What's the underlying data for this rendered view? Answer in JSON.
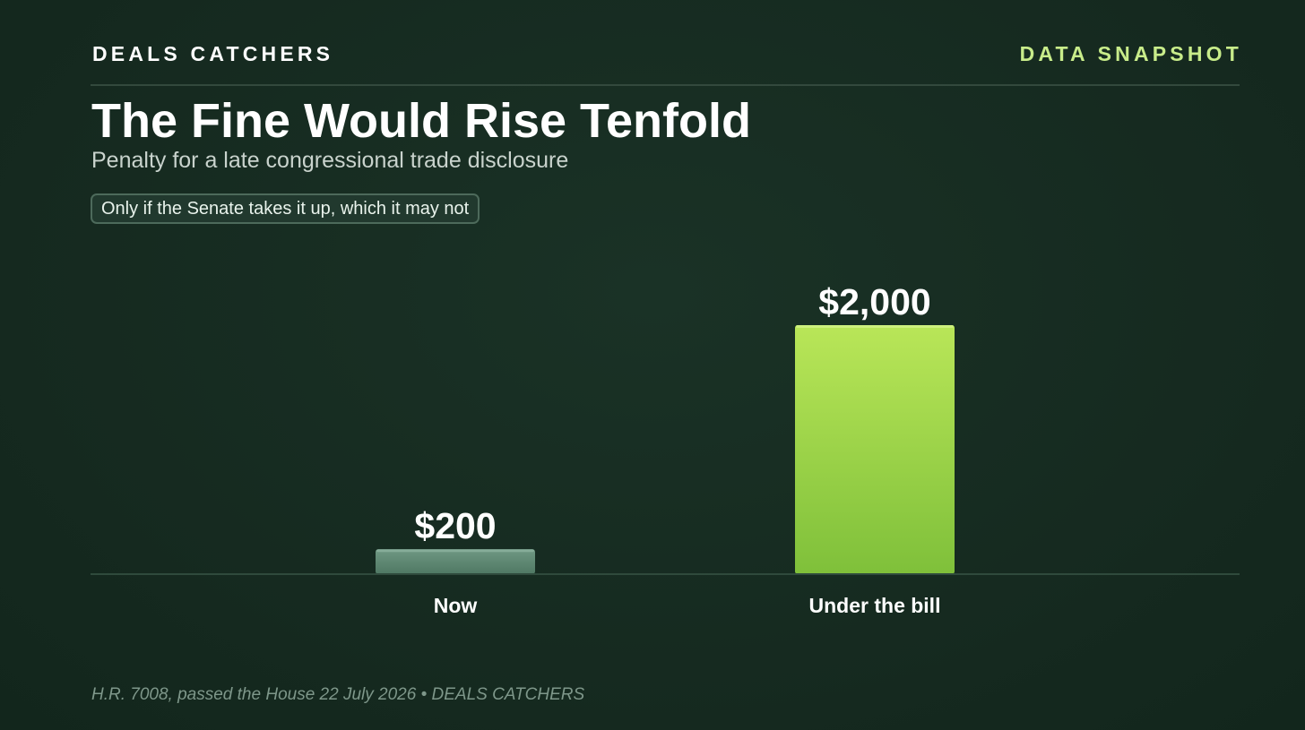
{
  "header": {
    "brand": "DEALS CATCHERS",
    "tag": "DATA SNAPSHOT"
  },
  "title": "The Fine Would Rise Tenfold",
  "subtitle": "Penalty for a late congressional trade disclosure",
  "note": "Only if the Senate takes it up, which it may not",
  "footer": "H.R. 7008, passed the House 22 July 2026 • DEALS CATCHERS",
  "colors": {
    "background": "#15291f",
    "accent": "#c8ec8a",
    "bar_now": "#5f8a72",
    "bar_bill_top": "#b9e658",
    "bar_bill_bottom": "#7fc03a"
  },
  "chart_data": {
    "type": "bar",
    "title": "The Fine Would Rise Tenfold",
    "subtitle": "Penalty for a late congressional trade disclosure",
    "categories": [
      "Now",
      "Under the bill"
    ],
    "values": [
      200,
      2000
    ],
    "value_labels": [
      "$200",
      "$2,000"
    ],
    "xlabel": "",
    "ylabel": "",
    "ylim": [
      0,
      2000
    ],
    "grid": false,
    "legend": "none"
  }
}
